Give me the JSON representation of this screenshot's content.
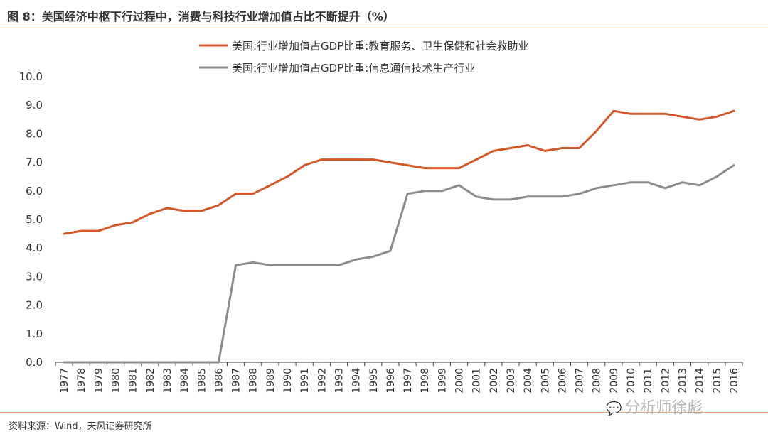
{
  "title": "图 8：美国经济中枢下行过程中，消费与科技行业增加值占比不断提升（%）",
  "source": "资料来源：Wind，天风证券研究所",
  "watermark": "分析师徐彪",
  "colors": {
    "accent": "#E8A068",
    "series1": "#D4572A",
    "series2": "#8C8C8C",
    "axis": "#404040"
  },
  "chart_data": {
    "type": "line",
    "ylim": [
      0,
      10
    ],
    "y_ticks": [
      "0.0",
      "1.0",
      "2.0",
      "3.0",
      "4.0",
      "5.0",
      "6.0",
      "7.0",
      "8.0",
      "9.0",
      "10.0"
    ],
    "categories": [
      "1977",
      "1978",
      "1979",
      "1980",
      "1981",
      "1982",
      "1983",
      "1984",
      "1985",
      "1986",
      "1987",
      "1988",
      "1989",
      "1990",
      "1991",
      "1992",
      "1993",
      "1994",
      "1995",
      "1996",
      "1997",
      "1998",
      "1999",
      "2000",
      "2001",
      "2002",
      "2003",
      "2004",
      "2005",
      "2006",
      "2007",
      "2008",
      "2009",
      "2010",
      "2011",
      "2012",
      "2013",
      "2014",
      "2015",
      "2016"
    ],
    "legend_position": "top",
    "series": [
      {
        "name": "美国:行业增加值占GDP比重:教育服务、卫生保健和社会救助业",
        "color": "#D4572A",
        "values": [
          4.5,
          4.6,
          4.6,
          4.8,
          4.9,
          5.2,
          5.4,
          5.3,
          5.3,
          5.5,
          5.9,
          5.9,
          6.2,
          6.5,
          6.9,
          7.1,
          7.1,
          7.1,
          7.1,
          7.0,
          6.9,
          6.8,
          6.8,
          6.8,
          7.1,
          7.4,
          7.5,
          7.6,
          7.4,
          7.5,
          7.5,
          8.1,
          8.8,
          8.7,
          8.7,
          8.7,
          8.6,
          8.5,
          8.6,
          8.8
        ]
      },
      {
        "name": "美国:行业增加值占GDP比重:信息通信技术生产行业",
        "color": "#8C8C8C",
        "values": [
          0,
          0,
          0,
          0,
          0,
          0,
          0,
          0,
          0,
          0,
          3.4,
          3.5,
          3.4,
          3.4,
          3.4,
          3.4,
          3.4,
          3.6,
          3.7,
          3.9,
          5.9,
          6.0,
          6.0,
          6.2,
          5.8,
          5.7,
          5.7,
          5.8,
          5.8,
          5.8,
          5.9,
          6.1,
          6.2,
          6.3,
          6.3,
          6.1,
          6.3,
          6.2,
          6.5,
          6.9
        ]
      }
    ]
  }
}
